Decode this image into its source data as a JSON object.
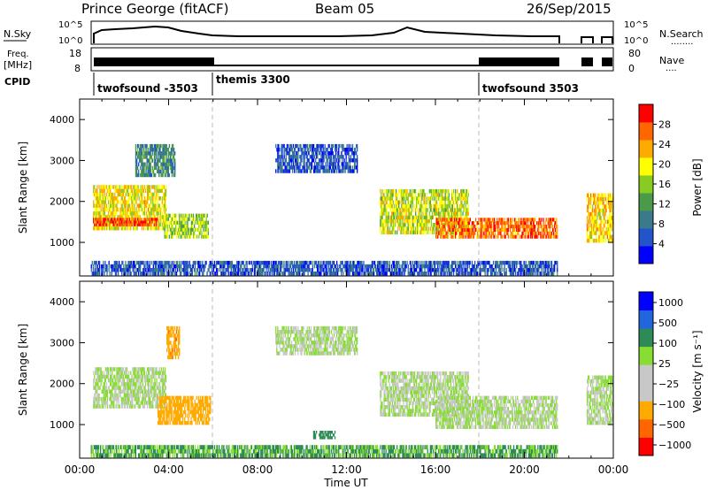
{
  "header": {
    "title": "Prince George (fitACF)",
    "beam": "Beam 05",
    "date": "26/Sep/2015"
  },
  "left_labels": {
    "nsky": "N.Sky",
    "freq_line1": "Freq.",
    "freq_line2": "[MHz]",
    "cpid": "CPID"
  },
  "right_labels": {
    "nsearch": "N.Search",
    "nsearch_dots": "........",
    "nave": "Nave",
    "nave_dots": "...."
  },
  "noise_axis": {
    "left_ticks": [
      "10^5",
      "10^0"
    ],
    "right_ticks": [
      "10^5",
      "10^0"
    ]
  },
  "freq_axis": {
    "left_ticks": [
      "18",
      "8"
    ],
    "right_ticks": [
      "80",
      "0"
    ]
  },
  "cpid_segments": [
    {
      "label": "twofsound -3503",
      "start_hour": 0.5
    },
    {
      "label": "themis 3300",
      "start_hour": 6.0
    },
    {
      "label": "twofsound 3503",
      "start_hour": 18.0
    }
  ],
  "colors": {
    "power": [
      "#0000ff",
      "#2255cc",
      "#3a7a8a",
      "#4a9a4a",
      "#88cc22",
      "#ffff00",
      "#ffaa00",
      "#ff6600",
      "#ff0000"
    ],
    "velocity": [
      "#ff0000",
      "#ff6600",
      "#ffaa00",
      "#c8c8c8",
      "#c8c8c8",
      "#88dd33",
      "#2e8b57",
      "#2266dd",
      "#0000ff"
    ],
    "accent": "#bbbbbb"
  },
  "chart_data": [
    {
      "type": "heatmap",
      "name": "power",
      "ylabel": "Slant Range [km]",
      "xlabel": "",
      "x_range_hours": [
        0,
        24
      ],
      "ylim": [
        180,
        4500
      ],
      "yticks": [
        1000,
        2000,
        3000,
        4000
      ],
      "colorbar": {
        "label": "Power [dB]",
        "ticks": [
          4,
          8,
          12,
          16,
          20,
          24,
          28
        ],
        "range": [
          0,
          32
        ]
      },
      "echo_regions": [
        {
          "t0": 0.6,
          "t1": 3.9,
          "r0": 1300,
          "r1": 2400,
          "level": 20
        },
        {
          "t0": 0.6,
          "t1": 3.5,
          "r0": 1400,
          "r1": 1600,
          "level": 28
        },
        {
          "t0": 2.5,
          "t1": 4.3,
          "r0": 2600,
          "r1": 3400,
          "level": 10
        },
        {
          "t0": 3.8,
          "t1": 5.8,
          "r0": 1100,
          "r1": 1700,
          "level": 16
        },
        {
          "t0": 8.8,
          "t1": 12.5,
          "r0": 2700,
          "r1": 3400,
          "level": 6
        },
        {
          "t0": 13.5,
          "t1": 17.5,
          "r0": 1200,
          "r1": 2300,
          "level": 18
        },
        {
          "t0": 16.0,
          "t1": 21.5,
          "r0": 1100,
          "r1": 1600,
          "level": 26
        },
        {
          "t0": 22.8,
          "t1": 24.0,
          "r0": 1000,
          "r1": 2200,
          "level": 22
        },
        {
          "t0": 0.5,
          "t1": 21.5,
          "r0": 200,
          "r1": 550,
          "level": 6
        }
      ]
    },
    {
      "type": "heatmap",
      "name": "velocity",
      "ylabel": "Slant Range [km]",
      "xlabel": "Time UT",
      "x_range_hours": [
        0,
        24
      ],
      "ylim": [
        180,
        4500
      ],
      "yticks": [
        1000,
        2000,
        3000,
        4000
      ],
      "xtick_labels": [
        "00:00",
        "04:00",
        "08:00",
        "12:00",
        "16:00",
        "20:00",
        "00:00"
      ],
      "colorbar": {
        "label": "Velocity [m s⁻¹]",
        "ticks": [
          "1000",
          "500",
          "100",
          "25",
          "−25",
          "−100",
          "−500",
          "−1000"
        ]
      },
      "echo_regions": [
        {
          "t0": 0.6,
          "t1": 3.9,
          "r0": 1400,
          "r1": 2400,
          "velocity": 0
        },
        {
          "t0": 3.5,
          "t1": 5.9,
          "r0": 1000,
          "r1": 1700,
          "velocity": -300
        },
        {
          "t0": 3.9,
          "t1": 4.5,
          "r0": 2600,
          "r1": 3400,
          "velocity": -400
        },
        {
          "t0": 8.8,
          "t1": 12.5,
          "r0": 2700,
          "r1": 3400,
          "velocity": 0
        },
        {
          "t0": 13.5,
          "t1": 17.5,
          "r0": 1200,
          "r1": 2300,
          "velocity": 0
        },
        {
          "t0": 16.0,
          "t1": 21.5,
          "r0": 900,
          "r1": 1700,
          "velocity": 0
        },
        {
          "t0": 22.8,
          "t1": 24.0,
          "r0": 1000,
          "r1": 2200,
          "velocity": 0
        },
        {
          "t0": 10.5,
          "t1": 11.5,
          "r0": 650,
          "r1": 850,
          "velocity": 60
        },
        {
          "t0": 0.5,
          "t1": 21.5,
          "r0": 200,
          "r1": 500,
          "velocity": 30
        }
      ]
    }
  ]
}
